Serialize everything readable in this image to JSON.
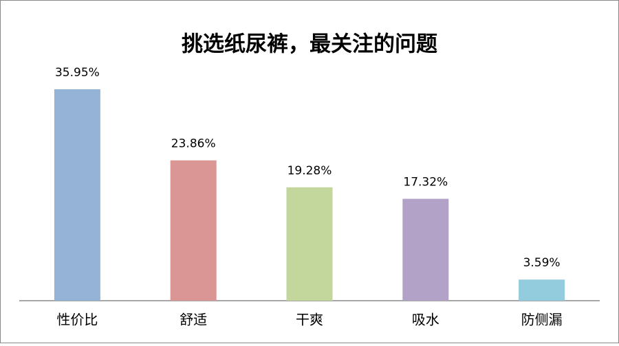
{
  "chart_data": {
    "type": "bar",
    "title": "挑选纸尿裤，最关注的问题",
    "categories": [
      "性价比",
      "舒适",
      "干爽",
      "吸水",
      "防侧漏"
    ],
    "values": [
      35.95,
      23.86,
      19.28,
      17.32,
      3.59
    ],
    "value_labels": [
      "35.95%",
      "23.86%",
      "19.28%",
      "17.32%",
      "3.59%"
    ],
    "colors": [
      "#95b3d7",
      "#d99694",
      "#c3d69b",
      "#b3a2c7",
      "#93cddd"
    ]
  }
}
